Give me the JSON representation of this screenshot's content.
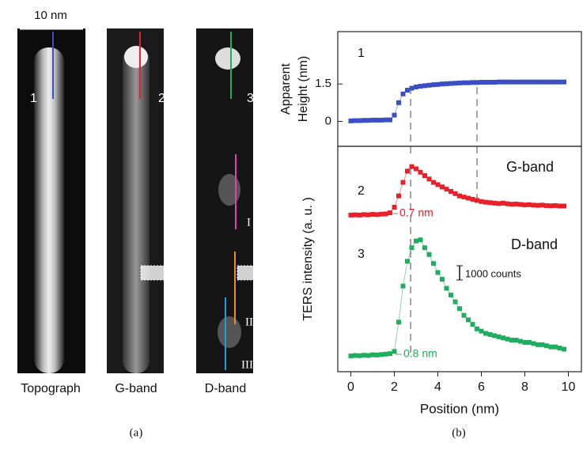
{
  "panel_a": {
    "scale_bar": "10 nm",
    "tag": "(a)",
    "images": [
      {
        "caption": "Topograph",
        "label": "1"
      },
      {
        "caption": "G-band",
        "label": "2"
      },
      {
        "caption": "D-band",
        "label": "3",
        "segments": [
          "I",
          "II",
          "III"
        ]
      }
    ]
  },
  "panel_b_tag": "(b)",
  "chart_data": [
    {
      "type": "scatter-line",
      "label": "1",
      "ylabel": [
        "Apparent",
        "Height (nm)"
      ],
      "xlim": [
        -0.6,
        10.6
      ],
      "ylim": [
        -1,
        3.6
      ],
      "yticks": [
        0,
        1.5
      ],
      "reference_lines": [
        2.75,
        5.8
      ],
      "x": [
        0,
        0.2,
        0.4,
        0.6,
        0.8,
        1,
        1.2,
        1.4,
        1.6,
        1.8,
        2,
        2.2,
        2.4,
        2.6,
        2.8,
        3,
        3.2,
        3.4,
        3.6,
        3.8,
        4,
        4.2,
        4.4,
        4.6,
        4.8,
        5,
        5.2,
        5.4,
        5.6,
        5.8,
        6,
        6.2,
        6.4,
        6.6,
        6.8,
        7,
        7.2,
        7.4,
        7.6,
        7.8,
        8,
        8.2,
        8.4,
        8.6,
        8.8,
        9,
        9.2,
        9.4,
        9.6,
        9.8
      ],
      "series": [
        {
          "color": "#3a4fc4",
          "values": [
            0.02,
            0.03,
            0.03,
            0.04,
            0.04,
            0.05,
            0.05,
            0.05,
            0.06,
            0.06,
            0.25,
            0.75,
            1.1,
            1.25,
            1.33,
            1.38,
            1.41,
            1.43,
            1.45,
            1.47,
            1.48,
            1.5,
            1.51,
            1.52,
            1.53,
            1.54,
            1.55,
            1.55,
            1.56,
            1.56,
            1.57,
            1.57,
            1.57,
            1.57,
            1.58,
            1.58,
            1.58,
            1.58,
            1.58,
            1.58,
            1.58,
            1.58,
            1.58,
            1.58,
            1.58,
            1.58,
            1.58,
            1.58,
            1.58,
            1.58
          ]
        }
      ]
    },
    {
      "type": "scatter-line",
      "ylabel": "TERS intensity (a. u. )",
      "xlabel": "Position (nm)",
      "xlim": [
        -0.6,
        10.6
      ],
      "xticks": [
        0,
        2,
        4,
        6,
        8,
        10
      ],
      "ylim": [
        0,
        100
      ],
      "reference_lines": [
        2.75
      ],
      "scale_label": "1000 counts",
      "x": [
        0,
        0.2,
        0.4,
        0.6,
        0.8,
        1,
        1.2,
        1.4,
        1.6,
        1.8,
        2,
        2.2,
        2.4,
        2.6,
        2.8,
        3,
        3.2,
        3.4,
        3.6,
        3.8,
        4,
        4.2,
        4.4,
        4.6,
        4.8,
        5,
        5.2,
        5.4,
        5.6,
        5.8,
        6,
        6.2,
        6.4,
        6.6,
        6.8,
        7,
        7.2,
        7.4,
        7.6,
        7.8,
        8,
        8.2,
        8.4,
        8.6,
        8.8,
        9,
        9.2,
        9.4,
        9.6,
        9.8
      ],
      "series": [
        {
          "name": "G-band",
          "label": "2",
          "width_label": "0.7 nm",
          "color": "#e8202a",
          "values": [
            69.5,
            69.6,
            69.5,
            69.7,
            69.6,
            69.8,
            69.7,
            69.9,
            70,
            70.5,
            73,
            78,
            84,
            89,
            91,
            90,
            88.5,
            87,
            85.5,
            84,
            83,
            82,
            81,
            80,
            79,
            78,
            77.5,
            77,
            76.5,
            76,
            75.5,
            75.2,
            75,
            74.8,
            74.6,
            74.8,
            74.5,
            74.3,
            74.4,
            74.2,
            74,
            74.1,
            73.9,
            73.8,
            73.9,
            73.7,
            73.6,
            73.7,
            73.5,
            73.5
          ]
        },
        {
          "name": "D-band",
          "label": "3",
          "width_label": "0.8 nm",
          "color": "#1fae5f",
          "values": [
            7,
            7.2,
            7.1,
            7.3,
            7.2,
            7.5,
            7.4,
            7.6,
            7.8,
            8,
            9,
            22,
            38,
            49,
            55,
            58,
            58.5,
            55,
            52,
            48,
            44,
            41,
            37,
            34,
            31,
            28,
            25,
            23,
            21,
            19,
            18,
            17,
            16.5,
            16,
            15.5,
            15,
            14.5,
            14,
            14,
            13.5,
            13,
            13,
            12.5,
            12,
            12,
            11.5,
            11,
            11,
            10.5,
            10
          ]
        }
      ]
    }
  ]
}
